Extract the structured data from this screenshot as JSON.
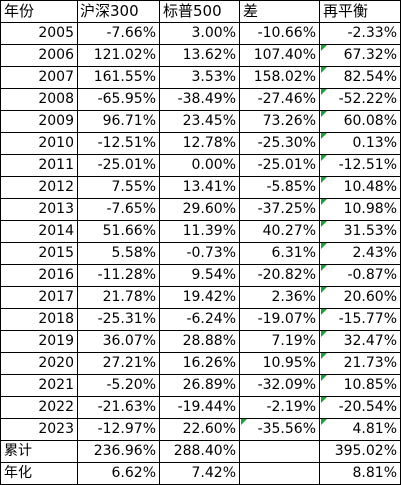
{
  "table": {
    "header": [
      "年份",
      "沪深300",
      "标普500",
      "差",
      "再平衡"
    ],
    "rows": [
      [
        "2005",
        "-7.66%",
        "3.00%",
        "-10.66%",
        "-2.33%"
      ],
      [
        "2006",
        "121.02%",
        "13.62%",
        "107.40%",
        "67.32%"
      ],
      [
        "2007",
        "161.55%",
        "3.53%",
        "158.02%",
        "82.54%"
      ],
      [
        "2008",
        "-65.95%",
        "-38.49%",
        "-27.46%",
        "-52.22%"
      ],
      [
        "2009",
        "96.71%",
        "23.45%",
        "73.26%",
        "60.08%"
      ],
      [
        "2010",
        "-12.51%",
        "12.78%",
        "-25.30%",
        "0.13%"
      ],
      [
        "2011",
        "-25.01%",
        "0.00%",
        "-25.01%",
        "-12.51%"
      ],
      [
        "2012",
        "7.55%",
        "13.41%",
        "-5.85%",
        "10.48%"
      ],
      [
        "2013",
        "-7.65%",
        "29.60%",
        "-37.25%",
        "10.98%"
      ],
      [
        "2014",
        "51.66%",
        "11.39%",
        "40.27%",
        "31.53%"
      ],
      [
        "2015",
        "5.58%",
        "-0.73%",
        "6.31%",
        "2.43%"
      ],
      [
        "2016",
        "-11.28%",
        "9.54%",
        "-20.82%",
        "-0.87%"
      ],
      [
        "2017",
        "21.78%",
        "19.42%",
        "2.36%",
        "20.60%"
      ],
      [
        "2018",
        "-25.31%",
        "-6.24%",
        "-19.07%",
        "-15.77%"
      ],
      [
        "2019",
        "36.07%",
        "28.88%",
        "7.19%",
        "32.47%"
      ],
      [
        "2020",
        "27.21%",
        "16.26%",
        "10.95%",
        "21.73%"
      ],
      [
        "2021",
        "-5.20%",
        "26.89%",
        "-32.09%",
        "10.85%"
      ],
      [
        "2022",
        "-21.63%",
        "-19.44%",
        "-2.19%",
        "-20.54%"
      ],
      [
        "2023",
        "-12.97%",
        "22.60%",
        "-35.56%",
        "4.81%"
      ],
      [
        "累计",
        "236.96%",
        "288.40%",
        null,
        "395.02%"
      ],
      [
        "年化",
        "6.62%",
        "7.42%",
        null,
        "8.81%"
      ]
    ]
  }
}
